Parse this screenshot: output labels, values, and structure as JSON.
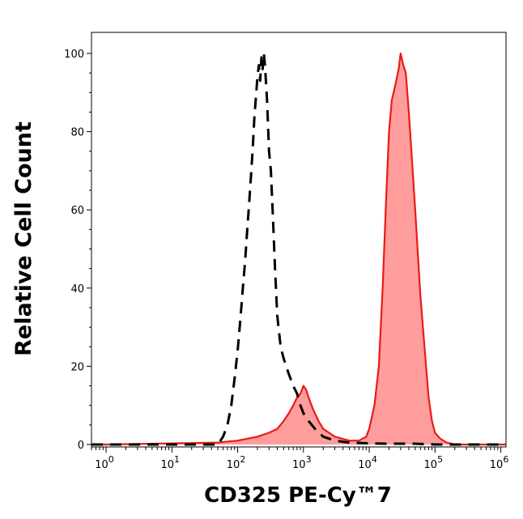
{
  "chart_data": {
    "type": "area",
    "title": "",
    "xlabel": "CD325 PE-Cy™7",
    "ylabel": "Relative Cell Count",
    "x_scale": "log",
    "xlim": [
      0.6,
      1200000
    ],
    "ylim": [
      0,
      104
    ],
    "grid": false,
    "legend": "none",
    "x_ticks": [
      {
        "value": 1,
        "base": "10",
        "exp": "0"
      },
      {
        "value": 10,
        "base": "10",
        "exp": "1"
      },
      {
        "value": 100,
        "base": "10",
        "exp": "2"
      },
      {
        "value": 1000,
        "base": "10",
        "exp": "3"
      },
      {
        "value": 10000,
        "base": "10",
        "exp": "4"
      },
      {
        "value": 100000,
        "base": "10",
        "exp": "5"
      },
      {
        "value": 1000000,
        "base": "10",
        "exp": "6"
      }
    ],
    "y_ticks": [
      {
        "value": 0,
        "label": "0"
      },
      {
        "value": 20,
        "label": "20"
      },
      {
        "value": 40,
        "label": "40"
      },
      {
        "value": 60,
        "label": "60"
      },
      {
        "value": 80,
        "label": "80"
      },
      {
        "value": 100,
        "label": "100"
      }
    ],
    "series": [
      {
        "style": "dashed",
        "color": "#000000",
        "x": [
          0.6,
          1,
          10,
          50,
          60,
          70,
          80,
          90,
          100,
          110,
          120,
          130,
          140,
          150,
          160,
          170,
          180,
          190,
          200,
          210,
          220,
          230,
          240,
          250,
          260,
          280,
          300,
          320,
          340,
          370,
          400,
          450,
          500,
          600,
          700,
          800,
          900,
          1000,
          1200,
          1500,
          2000,
          3000,
          5000,
          10000,
          20000,
          50000,
          100000,
          1000000,
          1200000
        ],
        "y": [
          0,
          0,
          0,
          0,
          2,
          5,
          10,
          17,
          24,
          32,
          40,
          47,
          55,
          62,
          69,
          76,
          84,
          89,
          94,
          97,
          93,
          99,
          96,
          100,
          97,
          88,
          75,
          70,
          60,
          45,
          33,
          25,
          22,
          18,
          15,
          13,
          10,
          8,
          6,
          4,
          2,
          1,
          0.5,
          0.3,
          0.2,
          0.2,
          0,
          0,
          0
        ]
      },
      {
        "style": "filled",
        "color": "#e81b16",
        "fill": "#ff9c9c",
        "x": [
          0.6,
          1,
          10,
          50,
          100,
          200,
          300,
          400,
          500,
          600,
          700,
          800,
          900,
          1000,
          1100,
          1200,
          1400,
          1700,
          2000,
          3000,
          5000,
          7000,
          9000,
          10000,
          12000,
          14000,
          16000,
          18000,
          20000,
          22000,
          25000,
          28000,
          30000,
          33000,
          36000,
          40000,
          45000,
          50000,
          60000,
          70000,
          80000,
          90000,
          100000,
          120000,
          150000,
          200000,
          1000000,
          1200000
        ],
        "y": [
          0,
          0,
          0.3,
          0.5,
          1,
          2,
          3,
          4,
          6,
          8,
          10,
          12,
          13,
          15,
          14,
          12,
          9,
          6,
          4,
          2,
          1,
          1,
          2,
          4,
          10,
          20,
          40,
          62,
          80,
          88,
          92,
          96,
          100,
          97,
          95,
          85,
          72,
          60,
          38,
          24,
          12,
          6,
          3,
          1.5,
          0.5,
          0,
          0,
          0
        ]
      }
    ]
  }
}
